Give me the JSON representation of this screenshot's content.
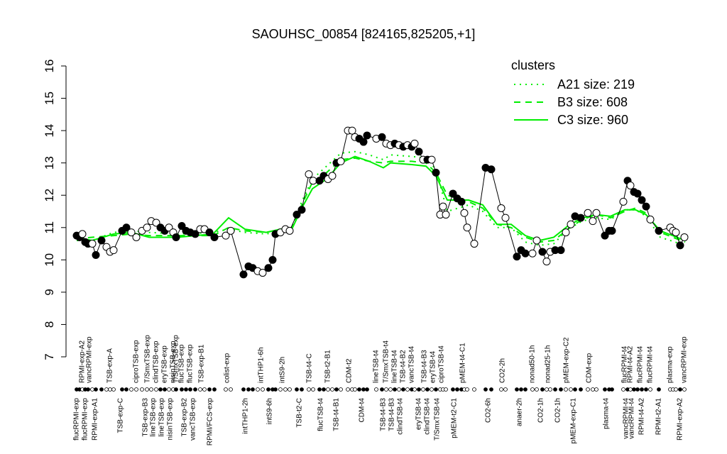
{
  "chart_data": {
    "type": "line",
    "title": "SAOUHSC_00854 [824165,825205,+1]",
    "ylim": [
      7,
      16
    ],
    "yticks": [
      7,
      8,
      9,
      10,
      11,
      12,
      13,
      14,
      15,
      16
    ],
    "xlim": [
      100,
      970
    ],
    "legend_title": "clusters",
    "legend_position": "top-right",
    "samples": {
      "x": [
        108,
        112,
        116,
        120,
        124,
        130,
        135,
        143,
        150,
        155,
        160,
        172,
        178,
        185,
        192,
        200,
        207,
        213,
        220,
        226,
        232,
        238,
        244,
        248,
        256,
        262,
        268,
        275,
        282,
        288,
        295,
        302,
        318,
        325,
        343,
        350,
        356,
        363,
        370,
        378,
        384,
        388,
        395,
        402,
        408,
        418,
        425,
        435,
        441,
        450,
        456,
        462,
        468,
        474,
        480,
        490,
        496,
        500,
        506,
        512,
        517,
        530,
        538,
        544,
        550,
        556,
        562,
        568,
        574,
        580,
        584,
        590,
        596,
        602,
        608,
        614,
        620,
        624,
        628,
        638,
        644,
        650,
        654,
        658,
        668,
        684,
        692,
        706,
        712,
        728,
        734,
        740,
        750,
        756,
        764,
        770,
        775,
        782,
        790,
        797,
        804,
        810,
        818,
        828,
        835,
        840,
        852,
        858,
        862,
        878,
        884,
        888,
        893,
        898,
        904,
        910,
        916,
        928,
        944,
        948,
        952,
        958,
        964
      ],
      "values": [
        10.75,
        10.7,
        10.8,
        10.55,
        10.5,
        10.5,
        10.15,
        10.6,
        10.4,
        10.25,
        10.3,
        10.9,
        11.0,
        10.85,
        10.7,
        10.9,
        11.0,
        11.2,
        11.15,
        11.0,
        10.9,
        11.0,
        10.85,
        10.7,
        11.05,
        10.9,
        10.85,
        10.8,
        10.95,
        10.95,
        10.85,
        10.7,
        10.75,
        10.9,
        9.55,
        9.8,
        9.75,
        9.65,
        9.6,
        9.75,
        10.0,
        10.8,
        10.85,
        10.95,
        10.9,
        11.4,
        11.55,
        12.65,
        12.45,
        12.45,
        12.6,
        12.5,
        12.6,
        13.0,
        13.05,
        14.0,
        14.0,
        13.8,
        13.75,
        13.65,
        13.85,
        13.75,
        13.8,
        13.6,
        13.55,
        13.6,
        13.55,
        13.5,
        13.55,
        13.5,
        13.6,
        13.35,
        13.1,
        13.1,
        13.1,
        12.7,
        11.4,
        11.65,
        11.4,
        12.05,
        11.9,
        11.8,
        11.45,
        11.0,
        10.5,
        12.85,
        12.8,
        11.6,
        11.3,
        10.1,
        10.3,
        10.2,
        10.2,
        10.6,
        10.25,
        9.95,
        10.25,
        10.3,
        10.3,
        10.85,
        11.1,
        11.35,
        11.3,
        11.45,
        11.2,
        11.45,
        10.75,
        10.9,
        10.9,
        11.8,
        12.45,
        12.3,
        12.1,
        12.05,
        11.85,
        11.65,
        11.25,
        10.9,
        11.0,
        10.9,
        10.85,
        10.45,
        10.7
      ],
      "filled": [
        true,
        true,
        false,
        true,
        true,
        false,
        true,
        true,
        false,
        false,
        false,
        true,
        true,
        false,
        false,
        false,
        false,
        false,
        false,
        true,
        true,
        false,
        false,
        true,
        true,
        true,
        true,
        true,
        false,
        false,
        true,
        true,
        false,
        false,
        true,
        true,
        true,
        false,
        false,
        true,
        true,
        true,
        false,
        false,
        false,
        true,
        true,
        false,
        false,
        true,
        true,
        false,
        false,
        true,
        false,
        false,
        false,
        false,
        true,
        true,
        true,
        false,
        true,
        false,
        false,
        true,
        false,
        true,
        false,
        true,
        false,
        true,
        false,
        true,
        false,
        true,
        false,
        false,
        false,
        true,
        true,
        true,
        false,
        false,
        false,
        true,
        true,
        false,
        false,
        true,
        true,
        true,
        false,
        false,
        true,
        false,
        false,
        true,
        true,
        false,
        false,
        true,
        true,
        false,
        false,
        false,
        true,
        true,
        true,
        false,
        true,
        false,
        true,
        true,
        true,
        true,
        false,
        true,
        false,
        false,
        false,
        true,
        false
      ],
      "color": "#000000"
    },
    "series": [
      {
        "name": "A21 size: 219",
        "color": "#00ee00",
        "dash": "dotted",
        "x": [
          108,
          130,
          160,
          185,
          210,
          250,
          300,
          322,
          345,
          375,
          395,
          410,
          425,
          440,
          460,
          480,
          500,
          520,
          540,
          550,
          580,
          600,
          614,
          630,
          660,
          680,
          700,
          720,
          740,
          760,
          780,
          800,
          820,
          840,
          860,
          880,
          895,
          910,
          930,
          965
        ],
        "values": [
          10.6,
          10.6,
          10.85,
          10.9,
          10.85,
          10.8,
          10.85,
          10.95,
          10.85,
          10.8,
          10.9,
          10.95,
          11.8,
          12.5,
          12.9,
          13.3,
          13.35,
          13.25,
          13.1,
          13.25,
          13.2,
          13.15,
          12.8,
          11.5,
          11.7,
          11.5,
          11.0,
          11.0,
          10.55,
          10.45,
          10.5,
          10.95,
          11.2,
          11.3,
          11.25,
          11.55,
          11.55,
          11.35,
          10.7,
          10.45
        ]
      },
      {
        "name": "B3 size: 608",
        "color": "#00ee00",
        "dash": "dashed",
        "x": [
          108,
          130,
          160,
          185,
          210,
          250,
          300,
          322,
          345,
          375,
          395,
          410,
          425,
          440,
          460,
          480,
          500,
          520,
          540,
          550,
          580,
          600,
          614,
          630,
          660,
          680,
          700,
          720,
          740,
          760,
          780,
          800,
          820,
          840,
          860,
          880,
          895,
          910,
          930,
          965
        ],
        "values": [
          10.65,
          10.7,
          10.75,
          10.8,
          10.75,
          10.75,
          10.75,
          11.0,
          10.9,
          10.85,
          10.95,
          10.95,
          11.7,
          12.4,
          12.7,
          13.1,
          13.15,
          13.05,
          13.0,
          13.05,
          13.05,
          13.0,
          12.7,
          12.0,
          11.8,
          11.6,
          11.1,
          11.0,
          10.7,
          10.55,
          10.6,
          10.95,
          11.25,
          11.4,
          11.3,
          11.5,
          11.6,
          11.45,
          10.85,
          10.55
        ]
      },
      {
        "name": "C3 size: 960",
        "color": "#00ee00",
        "dash": "solid",
        "x": [
          108,
          130,
          160,
          185,
          210,
          250,
          300,
          322,
          345,
          375,
          395,
          410,
          425,
          440,
          460,
          480,
          500,
          520,
          540,
          550,
          580,
          600,
          614,
          630,
          660,
          680,
          700,
          720,
          740,
          760,
          780,
          800,
          820,
          840,
          860,
          880,
          895,
          910,
          930,
          965
        ],
        "values": [
          10.7,
          10.6,
          10.8,
          10.85,
          10.7,
          10.7,
          10.8,
          11.3,
          10.95,
          10.85,
          10.95,
          10.9,
          11.6,
          12.2,
          12.5,
          13.0,
          13.2,
          13.05,
          12.85,
          13.0,
          12.95,
          12.9,
          12.6,
          11.85,
          11.85,
          11.7,
          11.1,
          11.1,
          10.75,
          10.6,
          10.7,
          11.05,
          11.3,
          11.4,
          11.35,
          11.55,
          11.55,
          11.4,
          10.9,
          10.6
        ]
      }
    ],
    "x2ticks": [
      {
        "value": 116,
        "label": "RPMI-exp-A2"
      },
      {
        "value": 126,
        "label": "vancRPMI-exp"
      },
      {
        "value": 155,
        "label": "TSB-exp-A"
      },
      {
        "value": 192,
        "label": "ciproTSB-exp"
      },
      {
        "value": 208,
        "label": "T/SmxTSB-exp"
      },
      {
        "value": 220,
        "label": "clindTSB-exp"
      },
      {
        "value": 232,
        "label": "eryTSB-exp"
      },
      {
        "value": 244,
        "label": "nisinTSB-exp"
      },
      {
        "value": 248,
        "label": "T/SmxTSB-exp"
      },
      {
        "value": 256,
        "label": "flucTSB-exp"
      },
      {
        "value": 268,
        "label": "flucTSB-exp"
      },
      {
        "value": 284,
        "label": "TSB-exp-B1"
      },
      {
        "value": 320,
        "label": "colist-exp"
      },
      {
        "value": 368,
        "label": "intTHP1-6h"
      },
      {
        "value": 398,
        "label": "intS9-2h"
      },
      {
        "value": 436,
        "label": "TSB-t4-C"
      },
      {
        "value": 462,
        "label": "TSB-t2-B1"
      },
      {
        "value": 492,
        "label": "CDM-t2"
      },
      {
        "value": 530,
        "label": "lineTSB-t4"
      },
      {
        "value": 544,
        "label": "T/SmxTSB-t4"
      },
      {
        "value": 556,
        "label": "lineTSB-t4"
      },
      {
        "value": 568,
        "label": "TSB-t4-B2"
      },
      {
        "value": 580,
        "label": "vancTSB-t4"
      },
      {
        "value": 598,
        "label": "TSB-t4-B3"
      },
      {
        "value": 610,
        "label": "eryTSB-t4"
      },
      {
        "value": 622,
        "label": "ciproTSB-t4"
      },
      {
        "value": 652,
        "label": "pMEM-t4-C1"
      },
      {
        "value": 708,
        "label": "CO2-2h"
      },
      {
        "value": 750,
        "label": "nonad50-1h"
      },
      {
        "value": 772,
        "label": "nonad25-1h"
      },
      {
        "value": 798,
        "label": "pMEM-exp-C2"
      },
      {
        "value": 830,
        "label": "CDM-exp"
      },
      {
        "value": 880,
        "label": "flucRPMI-t4"
      },
      {
        "value": 888,
        "label": "RPMI-t4-A2"
      },
      {
        "value": 902,
        "label": "flucRPMI-t4"
      },
      {
        "value": 916,
        "label": "flucRPMI-t4"
      },
      {
        "value": 944,
        "label": "plasma-exp"
      },
      {
        "value": 964,
        "label": "vancRPMI-exp"
      }
    ],
    "xticks": [
      {
        "value": 108,
        "label": "flucRPMI-exp"
      },
      {
        "value": 120,
        "label": "flucRPMI-exp"
      },
      {
        "value": 134,
        "label": "RPMI-exp-A1"
      },
      {
        "value": 170,
        "label": "TSB-exp-C"
      },
      {
        "value": 205,
        "label": "TSB-exp-B3"
      },
      {
        "value": 216,
        "label": "lineTSB-exp"
      },
      {
        "value": 228,
        "label": "lineTSB-exp"
      },
      {
        "value": 240,
        "label": "nisinTSB-exp"
      },
      {
        "value": 260,
        "label": "TSB-exp-B2"
      },
      {
        "value": 272,
        "label": "vancTSB-exp"
      },
      {
        "value": 296,
        "label": "RPMI/FCS-exp"
      },
      {
        "value": 346,
        "label": "intTHP1-2h"
      },
      {
        "value": 380,
        "label": "intS9-6h"
      },
      {
        "value": 422,
        "label": "TSB-t2-C"
      },
      {
        "value": 452,
        "label": "flucTSB-t4"
      },
      {
        "value": 474,
        "label": "TSB-t4-B1"
      },
      {
        "value": 510,
        "label": "CDM-t4"
      },
      {
        "value": 540,
        "label": "TSB-t4-B3"
      },
      {
        "value": 552,
        "label": "TSB-t4-B3"
      },
      {
        "value": 564,
        "label": "clindTSB-t4"
      },
      {
        "value": 590,
        "label": "eryTSB-t4"
      },
      {
        "value": 602,
        "label": "clindTSB-t4"
      },
      {
        "value": 616,
        "label": "T/SmxTSB-t4"
      },
      {
        "value": 640,
        "label": "pMEM-t2-C1"
      },
      {
        "value": 688,
        "label": "CO2-6h"
      },
      {
        "value": 732,
        "label": "anaer-2h"
      },
      {
        "value": 762,
        "label": "CO2-1h"
      },
      {
        "value": 786,
        "label": "CO2-1h"
      },
      {
        "value": 808,
        "label": "pMEM-exp-C1"
      },
      {
        "value": 854,
        "label": "plasma-t4"
      },
      {
        "value": 882,
        "label": "vancRPMI-t4"
      },
      {
        "value": 890,
        "label": "vancRPMI-t4"
      },
      {
        "value": 904,
        "label": "RPMI-t4-A2"
      },
      {
        "value": 928,
        "label": "RPMI-t2-A1"
      },
      {
        "value": 958,
        "label": "RPMI-exp-A2"
      }
    ]
  }
}
